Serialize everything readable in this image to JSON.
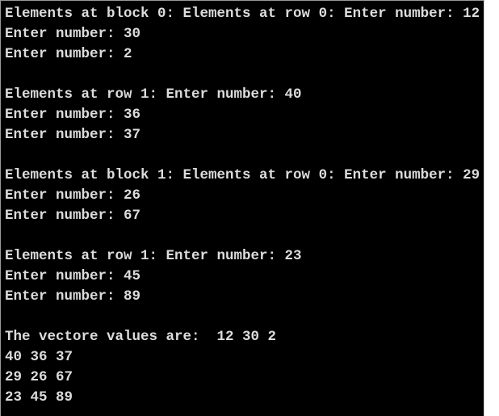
{
  "terminal": {
    "kind": "console-output",
    "background_color": "#000000",
    "text_color": "#dcdcdc",
    "lines": [
      "Elements at block 0: Elements at row 0: Enter number: 12",
      "Enter number: 30",
      "Enter number: 2",
      "",
      "Elements at row 1: Enter number: 40",
      "Enter number: 36",
      "Enter number: 37",
      "",
      "Elements at block 1: Elements at row 0: Enter number: 29",
      "Enter number: 26",
      "Enter number: 67",
      "",
      "Elements at row 1: Enter number: 23",
      "Enter number: 45",
      "Enter number: 89",
      "",
      "The vectore values are:  12 30 2",
      "40 36 37",
      "29 26 67",
      "23 45 89"
    ],
    "entered_numbers": {
      "block_0_row_0": [
        12,
        30,
        2
      ],
      "block_0_row_1": [
        40,
        36,
        37
      ],
      "block_1_row_0": [
        29,
        26,
        67
      ],
      "block_1_row_1": [
        23,
        45,
        89
      ]
    },
    "vector_output_label": "The vectore values are:",
    "vector_output_rows": [
      "12 30 2",
      "40 36 37",
      "29 26 67",
      "23 45 89"
    ]
  }
}
